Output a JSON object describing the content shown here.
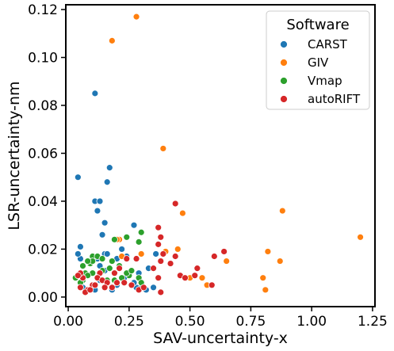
{
  "chart_data": {
    "type": "scatter",
    "title": "",
    "xlabel": "SAV-uncertainty-x",
    "ylabel": "LSR-uncertainty-nm",
    "xlim": [
      -0.01,
      1.26
    ],
    "ylim": [
      -0.004,
      0.122
    ],
    "xticks": [
      0.0,
      0.25,
      0.5,
      0.75,
      1.0,
      1.25
    ],
    "xtick_labels": [
      "0.00",
      "0.25",
      "0.50",
      "0.75",
      "1.00",
      "1.25"
    ],
    "yticks": [
      0.0,
      0.02,
      0.04,
      0.06,
      0.08,
      0.1,
      0.12
    ],
    "ytick_labels": [
      "0.00",
      "0.02",
      "0.04",
      "0.06",
      "0.08",
      "0.10",
      "0.12"
    ],
    "grid": false,
    "legend": {
      "title": "Software",
      "placement": "top-right"
    },
    "series": [
      {
        "name": "CARST",
        "color": "#1f77b4",
        "points": [
          [
            0.04,
            0.05
          ],
          [
            0.11,
            0.085
          ],
          [
            0.11,
            0.04
          ],
          [
            0.13,
            0.04
          ],
          [
            0.12,
            0.036
          ],
          [
            0.16,
            0.048
          ],
          [
            0.17,
            0.054
          ],
          [
            0.14,
            0.026
          ],
          [
            0.15,
            0.031
          ],
          [
            0.05,
            0.021
          ],
          [
            0.05,
            0.016
          ],
          [
            0.04,
            0.018
          ],
          [
            0.27,
            0.03
          ],
          [
            0.15,
            0.018
          ],
          [
            0.16,
            0.018
          ],
          [
            0.12,
            0.016
          ],
          [
            0.13,
            0.013
          ],
          [
            0.15,
            0.011
          ],
          [
            0.2,
            0.016
          ],
          [
            0.22,
            0.02
          ],
          [
            0.24,
            0.017
          ],
          [
            0.29,
            0.01
          ],
          [
            0.3,
            0.005
          ],
          [
            0.32,
            0.003
          ],
          [
            0.28,
            0.004
          ],
          [
            0.2,
            0.005
          ],
          [
            0.18,
            0.003
          ],
          [
            0.11,
            0.003
          ],
          [
            0.06,
            0.004
          ],
          [
            0.33,
            0.012
          ],
          [
            0.36,
            0.018
          ],
          [
            0.27,
            0.006
          ],
          [
            0.23,
            0.008
          ],
          [
            0.35,
            0.004
          ],
          [
            0.13,
            0.007
          ]
        ]
      },
      {
        "name": "GIV",
        "color": "#ff7f0e",
        "points": [
          [
            0.28,
            0.117
          ],
          [
            0.18,
            0.107
          ],
          [
            0.39,
            0.062
          ],
          [
            0.88,
            0.036
          ],
          [
            1.2,
            0.025
          ],
          [
            0.47,
            0.035
          ],
          [
            0.45,
            0.02
          ],
          [
            0.4,
            0.019
          ],
          [
            0.21,
            0.024
          ],
          [
            0.2,
            0.024
          ],
          [
            0.3,
            0.018
          ],
          [
            0.22,
            0.017
          ],
          [
            0.55,
            0.008
          ],
          [
            0.57,
            0.005
          ],
          [
            0.65,
            0.015
          ],
          [
            0.8,
            0.008
          ],
          [
            0.82,
            0.019
          ],
          [
            0.87,
            0.015
          ],
          [
            0.81,
            0.003
          ],
          [
            0.5,
            0.008
          ],
          [
            0.38,
            0.002
          ]
        ]
      },
      {
        "name": "Vmap",
        "color": "#2ca02c",
        "points": [
          [
            0.19,
            0.024
          ],
          [
            0.24,
            0.025
          ],
          [
            0.3,
            0.027
          ],
          [
            0.29,
            0.023
          ],
          [
            0.1,
            0.017
          ],
          [
            0.12,
            0.017
          ],
          [
            0.14,
            0.016
          ],
          [
            0.09,
            0.014
          ],
          [
            0.1,
            0.015
          ],
          [
            0.06,
            0.013
          ],
          [
            0.08,
            0.015
          ],
          [
            0.18,
            0.015
          ],
          [
            0.21,
            0.013
          ],
          [
            0.07,
            0.01
          ],
          [
            0.1,
            0.01
          ],
          [
            0.14,
            0.011
          ],
          [
            0.17,
            0.012
          ],
          [
            0.03,
            0.008
          ],
          [
            0.06,
            0.007
          ],
          [
            0.25,
            0.009
          ],
          [
            0.22,
            0.008
          ],
          [
            0.24,
            0.01
          ],
          [
            0.26,
            0.011
          ],
          [
            0.16,
            0.007
          ],
          [
            0.29,
            0.008
          ],
          [
            0.3,
            0.006
          ],
          [
            0.19,
            0.007
          ],
          [
            0.08,
            0.009
          ],
          [
            0.05,
            0.006
          ]
        ]
      },
      {
        "name": "autoRIFT",
        "color": "#d62728",
        "points": [
          [
            0.44,
            0.039
          ],
          [
            0.37,
            0.029
          ],
          [
            0.64,
            0.019
          ],
          [
            0.6,
            0.017
          ],
          [
            0.38,
            0.025
          ],
          [
            0.37,
            0.022
          ],
          [
            0.44,
            0.017
          ],
          [
            0.42,
            0.014
          ],
          [
            0.38,
            0.015
          ],
          [
            0.39,
            0.018
          ],
          [
            0.35,
            0.012
          ],
          [
            0.53,
            0.012
          ],
          [
            0.46,
            0.009
          ],
          [
            0.48,
            0.008
          ],
          [
            0.52,
            0.009
          ],
          [
            0.59,
            0.005
          ],
          [
            0.37,
            0.008
          ],
          [
            0.38,
            0.002
          ],
          [
            0.24,
            0.016
          ],
          [
            0.28,
            0.016
          ],
          [
            0.21,
            0.012
          ],
          [
            0.19,
            0.01
          ],
          [
            0.13,
            0.01
          ],
          [
            0.12,
            0.008
          ],
          [
            0.14,
            0.007
          ],
          [
            0.16,
            0.006
          ],
          [
            0.18,
            0.004
          ],
          [
            0.1,
            0.005
          ],
          [
            0.08,
            0.003
          ],
          [
            0.06,
            0.008
          ],
          [
            0.05,
            0.01
          ],
          [
            0.05,
            0.004
          ],
          [
            0.07,
            0.002
          ],
          [
            0.09,
            0.003
          ],
          [
            0.26,
            0.005
          ],
          [
            0.29,
            0.003
          ],
          [
            0.2,
            0.006
          ],
          [
            0.23,
            0.006
          ],
          [
            0.31,
            0.004
          ],
          [
            0.04,
            0.009
          ],
          [
            0.11,
            0.005
          ],
          [
            0.15,
            0.004
          ]
        ]
      }
    ]
  }
}
